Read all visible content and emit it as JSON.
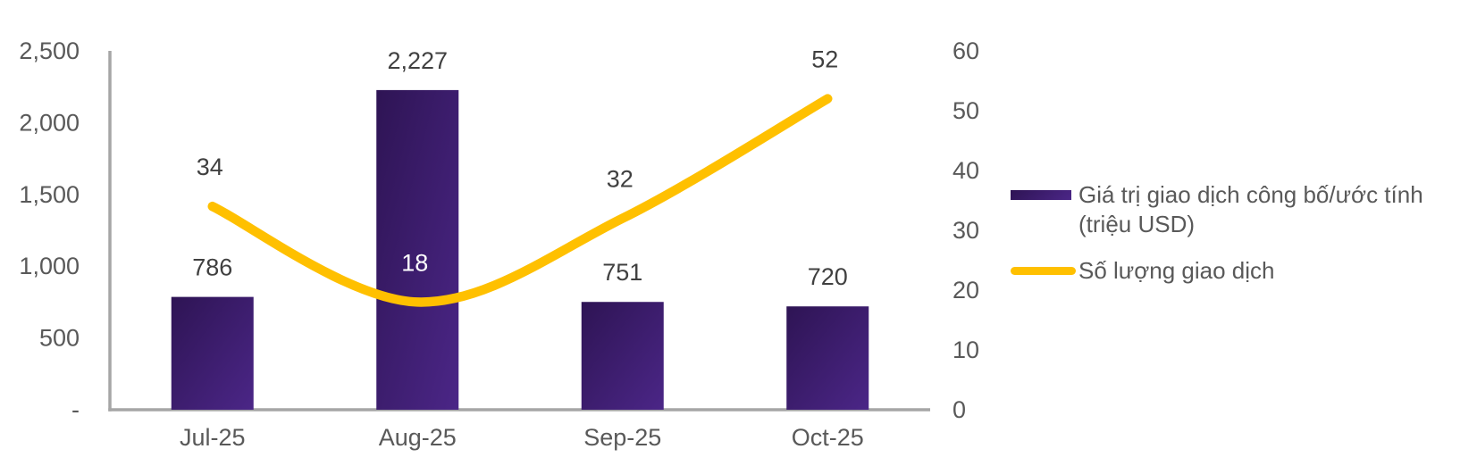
{
  "chart_data": {
    "type": "combo",
    "title": "",
    "categories": [
      "Jul-25",
      "Aug-25",
      "Sep-25",
      "Oct-25"
    ],
    "series": [
      {
        "name": "Giá trị giao dịch công bố/ước tính (triệu USD)",
        "type": "bar",
        "axis": "left",
        "values": [
          786,
          2227,
          751,
          720
        ],
        "labels": [
          "786",
          "2,227",
          "751",
          "720"
        ],
        "gradient": [
          "#2E1454",
          "#4B2687"
        ]
      },
      {
        "name": "Số lượng giao dịch",
        "type": "line",
        "axis": "right",
        "smooth": true,
        "values": [
          34,
          18,
          32,
          52
        ],
        "labels": [
          "34",
          "18",
          "32",
          "52"
        ],
        "label_colors": [
          "#404040",
          "#FFFFFF",
          "#404040",
          "#404040"
        ],
        "color": "#FFC000"
      }
    ],
    "left_axis": {
      "min": 0,
      "max": 2500,
      "ticks": [
        "2,500",
        "2,000",
        "1,500",
        "1,000",
        "500",
        "-"
      ]
    },
    "right_axis": {
      "min": 0,
      "max": 60,
      "ticks": [
        "60",
        "50",
        "40",
        "30",
        "20",
        "10",
        "0"
      ]
    },
    "grid": false,
    "legend_position": "right"
  },
  "legend": {
    "items": [
      {
        "label": "Giá trị giao dịch công bố/ước tính (triệu USD)",
        "swatch": "bar-gradient"
      },
      {
        "label": "Số lượng giao dịch",
        "swatch": "line"
      }
    ]
  },
  "colors": {
    "background": "#FFFFFF",
    "bar_dark": "#2E1454",
    "bar_light": "#4B2687",
    "line": "#FFC000",
    "axis_line": "#A6A6A6",
    "tick_text": "#595959",
    "category_text": "#595959",
    "data_label": "#404040",
    "data_label_on_bar": "#FFFFFF"
  }
}
